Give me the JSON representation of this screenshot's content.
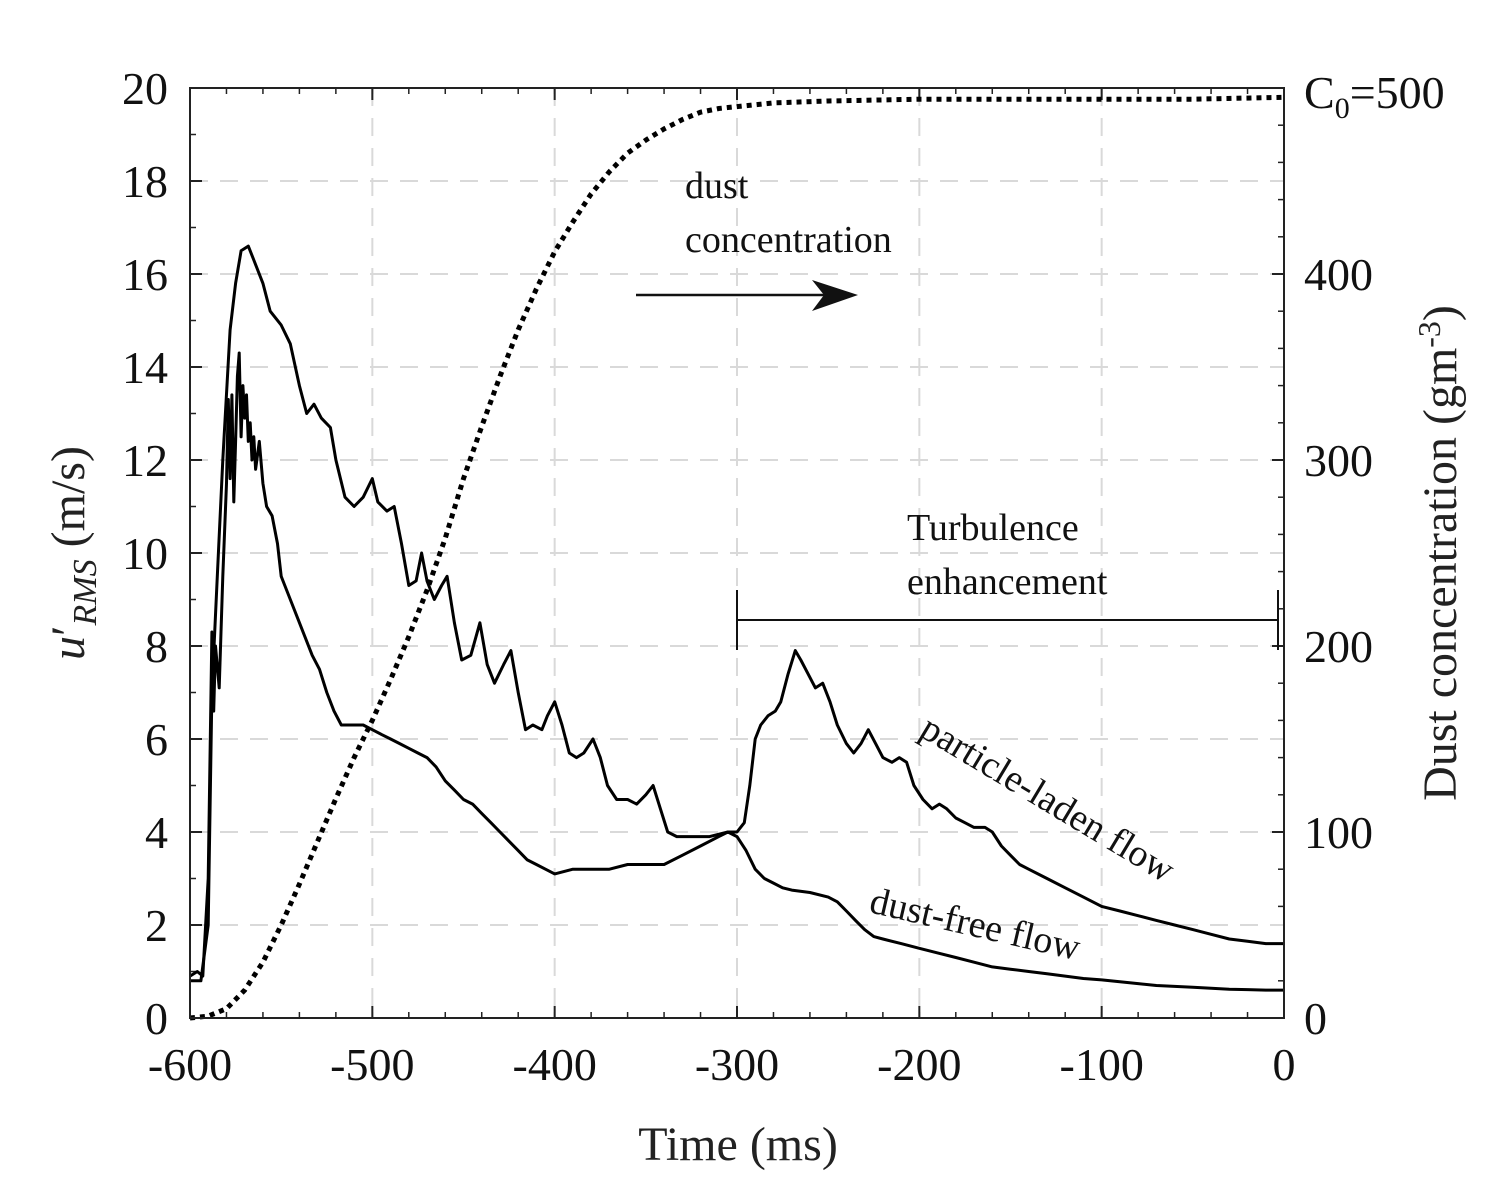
{
  "chart_data": {
    "type": "line",
    "xlabel": "Time (ms)",
    "ylabel_left": "u'_RMS (m/s)",
    "ylabel_left_parts": {
      "symbol": "u",
      "prime": "′",
      "subscript": "RMS",
      "units": " (m/s)"
    },
    "ylabel_right": "Dust concentration (gm-3)",
    "ylabel_right_parts": {
      "text": "Dust concentration (gm",
      "sup": "-3",
      "close": ")"
    },
    "xlim": [
      -600,
      0
    ],
    "ylim_left": [
      0,
      20
    ],
    "ylim_right": [
      0,
      500
    ],
    "x_ticks": [
      "-600",
      "-500",
      "-400",
      "-300",
      "-200",
      "-100",
      "0"
    ],
    "y_left_ticks": [
      "0",
      "2",
      "4",
      "6",
      "8",
      "10",
      "12",
      "14",
      "16",
      "18",
      "20"
    ],
    "y_right_ticks": [
      "0",
      "100",
      "200",
      "300",
      "400"
    ],
    "right_top_label": {
      "main": "C",
      "sub": "0",
      "rest": "=500"
    },
    "grid": true,
    "series": [
      {
        "name": "particle-laden flow",
        "axis": "left",
        "style": "solid",
        "points": [
          [
            -600,
            0.8
          ],
          [
            -594,
            0.8
          ],
          [
            -590,
            2
          ],
          [
            -588,
            7
          ],
          [
            -585,
            9.5
          ],
          [
            -582,
            12
          ],
          [
            -578,
            14.8
          ],
          [
            -575,
            15.8
          ],
          [
            -572,
            16.5
          ],
          [
            -568,
            16.6
          ],
          [
            -565,
            16.3
          ],
          [
            -560,
            15.8
          ],
          [
            -556,
            15.2
          ],
          [
            -550,
            14.9
          ],
          [
            -545,
            14.5
          ],
          [
            -540,
            13.6
          ],
          [
            -536,
            13
          ],
          [
            -532,
            13.2
          ],
          [
            -528,
            12.9
          ],
          [
            -523,
            12.7
          ],
          [
            -520,
            12
          ],
          [
            -515,
            11.2
          ],
          [
            -510,
            11
          ],
          [
            -505,
            11.2
          ],
          [
            -500,
            11.6
          ],
          [
            -497,
            11.1
          ],
          [
            -492,
            10.9
          ],
          [
            -488,
            11
          ],
          [
            -484,
            10.2
          ],
          [
            -480,
            9.3
          ],
          [
            -476,
            9.4
          ],
          [
            -473,
            10
          ],
          [
            -470,
            9.4
          ],
          [
            -466,
            9
          ],
          [
            -462,
            9.3
          ],
          [
            -459,
            9.5
          ],
          [
            -455,
            8.5
          ],
          [
            -451,
            7.7
          ],
          [
            -446,
            7.8
          ],
          [
            -441,
            8.5
          ],
          [
            -437,
            7.6
          ],
          [
            -433,
            7.2
          ],
          [
            -428,
            7.6
          ],
          [
            -424,
            7.9
          ],
          [
            -420,
            7
          ],
          [
            -416,
            6.2
          ],
          [
            -412,
            6.3
          ],
          [
            -407,
            6.2
          ],
          [
            -404,
            6.5
          ],
          [
            -400,
            6.8
          ],
          [
            -396,
            6.3
          ],
          [
            -392,
            5.7
          ],
          [
            -388,
            5.6
          ],
          [
            -384,
            5.7
          ],
          [
            -379,
            6
          ],
          [
            -375,
            5.6
          ],
          [
            -371,
            5
          ],
          [
            -366,
            4.7
          ],
          [
            -360,
            4.7
          ],
          [
            -355,
            4.6
          ],
          [
            -350,
            4.8
          ],
          [
            -346,
            5
          ],
          [
            -342,
            4.5
          ],
          [
            -338,
            4
          ],
          [
            -333,
            3.9
          ],
          [
            -325,
            3.9
          ],
          [
            -315,
            3.9
          ],
          [
            -305,
            4
          ],
          [
            -300,
            4
          ],
          [
            -296,
            4.2
          ],
          [
            -293,
            5
          ],
          [
            -290,
            6
          ],
          [
            -287,
            6.3
          ],
          [
            -283,
            6.5
          ],
          [
            -279,
            6.6
          ],
          [
            -276,
            6.8
          ],
          [
            -272,
            7.4
          ],
          [
            -268,
            7.9
          ],
          [
            -265,
            7.7
          ],
          [
            -261,
            7.4
          ],
          [
            -257,
            7.1
          ],
          [
            -253,
            7.2
          ],
          [
            -249,
            6.8
          ],
          [
            -245,
            6.3
          ],
          [
            -240,
            5.9
          ],
          [
            -236,
            5.7
          ],
          [
            -232,
            5.9
          ],
          [
            -228,
            6.2
          ],
          [
            -224,
            5.9
          ],
          [
            -220,
            5.6
          ],
          [
            -215,
            5.5
          ],
          [
            -211,
            5.6
          ],
          [
            -207,
            5.5
          ],
          [
            -203,
            5
          ],
          [
            -198,
            4.7
          ],
          [
            -193,
            4.5
          ],
          [
            -189,
            4.6
          ],
          [
            -185,
            4.5
          ],
          [
            -180,
            4.3
          ],
          [
            -175,
            4.2
          ],
          [
            -170,
            4.1
          ],
          [
            -164,
            4.1
          ],
          [
            -160,
            4
          ],
          [
            -155,
            3.7
          ],
          [
            -150,
            3.5
          ],
          [
            -145,
            3.3
          ],
          [
            -140,
            3.2
          ],
          [
            -130,
            3
          ],
          [
            -120,
            2.8
          ],
          [
            -110,
            2.6
          ],
          [
            -100,
            2.4
          ],
          [
            -90,
            2.3
          ],
          [
            -80,
            2.2
          ],
          [
            -70,
            2.1
          ],
          [
            -60,
            2
          ],
          [
            -50,
            1.9
          ],
          [
            -40,
            1.8
          ],
          [
            -30,
            1.7
          ],
          [
            -20,
            1.65
          ],
          [
            -10,
            1.6
          ],
          [
            0,
            1.6
          ]
        ]
      },
      {
        "name": "dust-free flow",
        "axis": "left",
        "style": "solid",
        "points": [
          [
            -600,
            0.9
          ],
          [
            -596,
            1
          ],
          [
            -593,
            0.9
          ],
          [
            -590,
            3
          ],
          [
            -588,
            8.3
          ],
          [
            -587,
            6.6
          ],
          [
            -586,
            8
          ],
          [
            -584,
            7.1
          ],
          [
            -582,
            9.5
          ],
          [
            -580,
            11.5
          ],
          [
            -579,
            13.3
          ],
          [
            -578,
            11.6
          ],
          [
            -577,
            13.4
          ],
          [
            -576,
            11.1
          ],
          [
            -575,
            12.4
          ],
          [
            -574,
            13.8
          ],
          [
            -573,
            14.3
          ],
          [
            -572,
            12.5
          ],
          [
            -571,
            13.6
          ],
          [
            -570,
            12.9
          ],
          [
            -569,
            13.4
          ],
          [
            -568,
            12.4
          ],
          [
            -567,
            12.8
          ],
          [
            -566,
            12
          ],
          [
            -565,
            12.5
          ],
          [
            -564,
            11.8
          ],
          [
            -562,
            12.4
          ],
          [
            -560,
            11.5
          ],
          [
            -558,
            11
          ],
          [
            -555,
            10.8
          ],
          [
            -552,
            10.2
          ],
          [
            -550,
            9.5
          ],
          [
            -548,
            9.3
          ],
          [
            -545,
            9
          ],
          [
            -541,
            8.6
          ],
          [
            -537,
            8.2
          ],
          [
            -533,
            7.8
          ],
          [
            -529,
            7.5
          ],
          [
            -525,
            7
          ],
          [
            -521,
            6.6
          ],
          [
            -517,
            6.3
          ],
          [
            -513,
            6.3
          ],
          [
            -509,
            6.3
          ],
          [
            -505,
            6.3
          ],
          [
            -500,
            6.2
          ],
          [
            -495,
            6.1
          ],
          [
            -490,
            6
          ],
          [
            -485,
            5.9
          ],
          [
            -480,
            5.8
          ],
          [
            -475,
            5.7
          ],
          [
            -470,
            5.6
          ],
          [
            -465,
            5.4
          ],
          [
            -460,
            5.1
          ],
          [
            -455,
            4.9
          ],
          [
            -450,
            4.7
          ],
          [
            -445,
            4.6
          ],
          [
            -440,
            4.4
          ],
          [
            -435,
            4.2
          ],
          [
            -430,
            4
          ],
          [
            -425,
            3.8
          ],
          [
            -420,
            3.6
          ],
          [
            -415,
            3.4
          ],
          [
            -410,
            3.3
          ],
          [
            -405,
            3.2
          ],
          [
            -400,
            3.1
          ],
          [
            -390,
            3.2
          ],
          [
            -380,
            3.2
          ],
          [
            -370,
            3.2
          ],
          [
            -360,
            3.3
          ],
          [
            -350,
            3.3
          ],
          [
            -340,
            3.3
          ],
          [
            -330,
            3.5
          ],
          [
            -320,
            3.7
          ],
          [
            -310,
            3.9
          ],
          [
            -305,
            4
          ],
          [
            -300,
            3.9
          ],
          [
            -295,
            3.6
          ],
          [
            -290,
            3.2
          ],
          [
            -285,
            3
          ],
          [
            -280,
            2.9
          ],
          [
            -275,
            2.8
          ],
          [
            -270,
            2.75
          ],
          [
            -260,
            2.7
          ],
          [
            -250,
            2.6
          ],
          [
            -245,
            2.5
          ],
          [
            -240,
            2.3
          ],
          [
            -235,
            2.1
          ],
          [
            -230,
            1.9
          ],
          [
            -225,
            1.75
          ],
          [
            -220,
            1.7
          ],
          [
            -210,
            1.6
          ],
          [
            -200,
            1.5
          ],
          [
            -190,
            1.4
          ],
          [
            -180,
            1.3
          ],
          [
            -170,
            1.2
          ],
          [
            -160,
            1.1
          ],
          [
            -150,
            1.05
          ],
          [
            -140,
            1
          ],
          [
            -130,
            0.95
          ],
          [
            -120,
            0.9
          ],
          [
            -110,
            0.85
          ],
          [
            -100,
            0.82
          ],
          [
            -90,
            0.78
          ],
          [
            -80,
            0.74
          ],
          [
            -70,
            0.7
          ],
          [
            -60,
            0.68
          ],
          [
            -50,
            0.66
          ],
          [
            -40,
            0.64
          ],
          [
            -30,
            0.62
          ],
          [
            -20,
            0.61
          ],
          [
            -10,
            0.6
          ],
          [
            0,
            0.6
          ]
        ]
      },
      {
        "name": "dust concentration",
        "axis": "right",
        "style": "dotted",
        "points": [
          [
            -600,
            0
          ],
          [
            -590,
            1
          ],
          [
            -580,
            5
          ],
          [
            -570,
            15
          ],
          [
            -560,
            30
          ],
          [
            -550,
            50
          ],
          [
            -540,
            72
          ],
          [
            -530,
            95
          ],
          [
            -520,
            118
          ],
          [
            -510,
            140
          ],
          [
            -500,
            160
          ],
          [
            -490,
            182
          ],
          [
            -480,
            205
          ],
          [
            -470,
            230
          ],
          [
            -460,
            258
          ],
          [
            -450,
            290
          ],
          [
            -440,
            318
          ],
          [
            -430,
            345
          ],
          [
            -420,
            370
          ],
          [
            -410,
            392
          ],
          [
            -400,
            412
          ],
          [
            -390,
            428
          ],
          [
            -380,
            443
          ],
          [
            -370,
            455
          ],
          [
            -360,
            465
          ],
          [
            -350,
            472
          ],
          [
            -340,
            478
          ],
          [
            -330,
            483
          ],
          [
            -320,
            487
          ],
          [
            -310,
            489
          ],
          [
            -300,
            490
          ],
          [
            -280,
            492
          ],
          [
            -250,
            493
          ],
          [
            -200,
            494
          ],
          [
            -150,
            494
          ],
          [
            -100,
            494
          ],
          [
            -50,
            494
          ],
          [
            0,
            495
          ]
        ]
      }
    ],
    "annotations": {
      "dust_label_line1": "dust",
      "dust_label_line2": "concentration",
      "turbulence_line1": "Turbulence",
      "turbulence_line2": "enhancement",
      "turbulence_range": [
        -300,
        0
      ],
      "particle_label": "particle-laden flow",
      "dustfree_label": "dust-free flow"
    }
  }
}
